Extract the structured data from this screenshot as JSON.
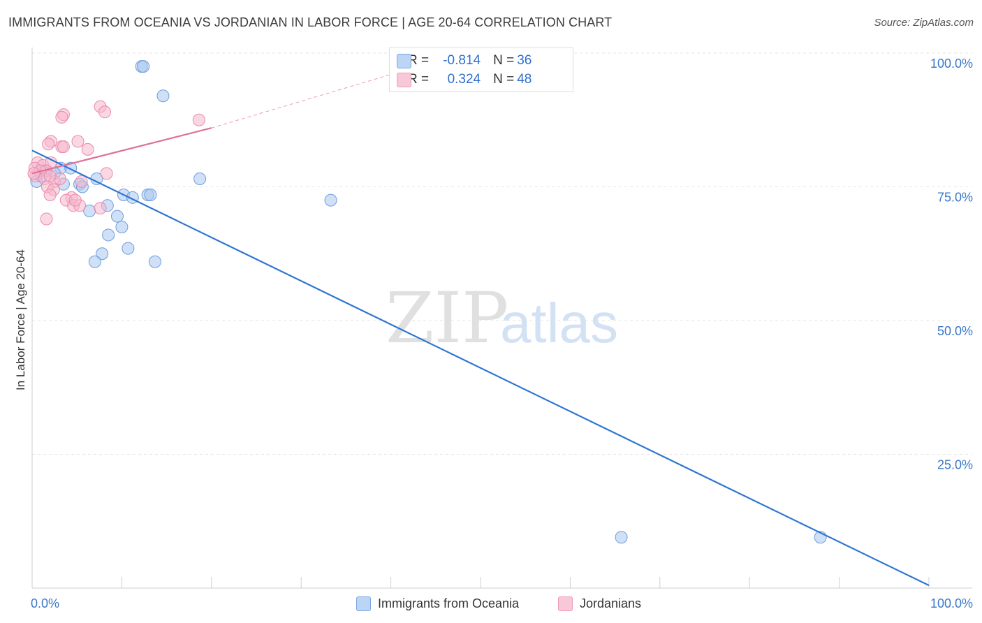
{
  "title": "IMMIGRANTS FROM OCEANIA VS JORDANIAN IN LABOR FORCE | AGE 20-64 CORRELATION CHART",
  "source": "Source: ZipAtlas.com",
  "watermark": {
    "zip": "ZIP",
    "atlas": "atlas"
  },
  "legend": {
    "rows": [
      {
        "r_label": "R =",
        "r_value": "-0.814",
        "n_label": "N =",
        "n_value": "36"
      },
      {
        "r_label": "R =",
        "r_value": "0.324",
        "n_label": "N =",
        "n_value": "48"
      }
    ]
  },
  "colors": {
    "blue_fill": "#a9c8f0",
    "blue_stroke": "#6d9de0",
    "blue_line": "#2f76d2",
    "pink_fill": "#f5b8cc",
    "pink_stroke": "#ea8aaa",
    "pink_line": "#e0709a",
    "tick_label": "#3a78c8",
    "grid": "#e6e6e6"
  },
  "chart_data": {
    "type": "scatter",
    "title": "IMMIGRANTS FROM OCEANIA VS JORDANIAN IN LABOR FORCE | AGE 20-64 CORRELATION CHART",
    "xlabel": "",
    "ylabel": "In Labor Force | Age 20-64",
    "xlim": [
      0,
      100
    ],
    "ylim": [
      0,
      100
    ],
    "x_tick_labels": [
      "0.0%",
      "100.0%"
    ],
    "y_ticks": [
      25,
      50,
      75,
      100
    ],
    "y_tick_labels": [
      "25.0%",
      "50.0%",
      "75.0%",
      "100.0%"
    ],
    "series": [
      {
        "name": "Immigrants from Oceania",
        "color": "blue",
        "points": [
          [
            12.2,
            97.5
          ],
          [
            12.4,
            97.5
          ],
          [
            14.6,
            92.0
          ],
          [
            0.5,
            76.0
          ],
          [
            3.2,
            78.5
          ],
          [
            4.3,
            78.5
          ],
          [
            3.5,
            75.5
          ],
          [
            5.3,
            75.5
          ],
          [
            5.6,
            75.0
          ],
          [
            7.2,
            76.5
          ],
          [
            10.2,
            73.5
          ],
          [
            11.2,
            73.0
          ],
          [
            12.9,
            73.5
          ],
          [
            13.2,
            73.5
          ],
          [
            18.7,
            76.5
          ],
          [
            8.4,
            71.5
          ],
          [
            6.4,
            70.5
          ],
          [
            9.5,
            69.5
          ],
          [
            10.0,
            67.5
          ],
          [
            8.5,
            66.0
          ],
          [
            10.7,
            63.5
          ],
          [
            7.8,
            62.5
          ],
          [
            7.0,
            61.0
          ],
          [
            13.7,
            61.0
          ],
          [
            33.3,
            72.5
          ],
          [
            2.5,
            77.5
          ],
          [
            1.5,
            78.0
          ],
          [
            1.0,
            77.0
          ],
          [
            65.7,
            9.5
          ],
          [
            87.9,
            9.5
          ]
        ],
        "trend": {
          "x": [
            0,
            100
          ],
          "y": [
            81.8,
            0.5
          ]
        }
      },
      {
        "name": "Jordanians",
        "color": "pink",
        "points": [
          [
            7.6,
            90.0
          ],
          [
            8.1,
            89.0
          ],
          [
            3.5,
            88.5
          ],
          [
            3.3,
            88.0
          ],
          [
            18.6,
            87.5
          ],
          [
            2.1,
            83.5
          ],
          [
            1.8,
            83.0
          ],
          [
            3.3,
            82.5
          ],
          [
            3.5,
            82.5
          ],
          [
            5.1,
            83.5
          ],
          [
            6.2,
            82.0
          ],
          [
            0.6,
            79.5
          ],
          [
            1.2,
            79.0
          ],
          [
            0.3,
            78.5
          ],
          [
            2.1,
            79.5
          ],
          [
            1.6,
            78.0
          ],
          [
            0.9,
            78.0
          ],
          [
            0.4,
            77.0
          ],
          [
            0.2,
            77.5
          ],
          [
            1.4,
            76.5
          ],
          [
            2.5,
            76.0
          ],
          [
            3.1,
            76.5
          ],
          [
            2.0,
            77.0
          ],
          [
            1.7,
            75.0
          ],
          [
            5.5,
            76.0
          ],
          [
            2.4,
            74.5
          ],
          [
            8.3,
            77.5
          ],
          [
            2.0,
            73.5
          ],
          [
            4.4,
            73.0
          ],
          [
            3.8,
            72.5
          ],
          [
            4.6,
            71.5
          ],
          [
            5.3,
            71.5
          ],
          [
            7.6,
            71.0
          ],
          [
            1.6,
            69.0
          ],
          [
            4.8,
            72.5
          ]
        ],
        "trend_solid": {
          "x": [
            0,
            20
          ],
          "y": [
            77.5,
            86.0
          ]
        },
        "trend_dashed": {
          "x": [
            20,
            43
          ],
          "y": [
            86.0,
            97.5
          ]
        }
      }
    ]
  },
  "bottom_legend": {
    "items": [
      {
        "label": "Immigrants from Oceania"
      },
      {
        "label": "Jordanians"
      }
    ]
  }
}
